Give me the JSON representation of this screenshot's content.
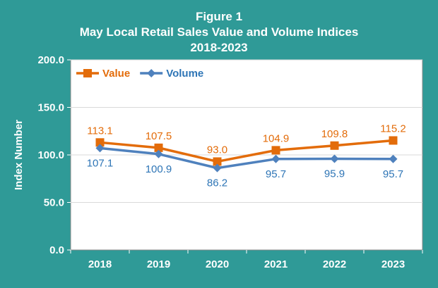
{
  "chart_data": {
    "type": "line",
    "title_lines": [
      "Figure 1",
      "May Local Retail Sales Value and Volume Indices",
      "2018-2023"
    ],
    "xlabel": "",
    "ylabel": "Index Number",
    "categories": [
      "2018",
      "2019",
      "2020",
      "2021",
      "2022",
      "2023"
    ],
    "ylim": [
      0,
      200
    ],
    "y_ticks": [
      0,
      50,
      100,
      150,
      200
    ],
    "y_tick_labels": [
      "0.0",
      "50.0",
      "100.0",
      "150.0",
      "200.0"
    ],
    "grid": true,
    "legend_position": "top-left",
    "series": [
      {
        "name": "Value",
        "color": "#e36c0a",
        "marker": "square",
        "values": [
          113.1,
          107.5,
          93.0,
          104.9,
          109.8,
          115.2
        ],
        "labels": [
          "113.1",
          "107.5",
          "93.0",
          "104.9",
          "109.8",
          "115.2"
        ]
      },
      {
        "name": "Volume",
        "color": "#4f81bd",
        "label_color": "#2e75b6",
        "marker": "diamond",
        "values": [
          107.1,
          100.9,
          86.2,
          95.7,
          95.9,
          95.7
        ],
        "labels": [
          "107.1",
          "100.9",
          "86.2",
          "95.7",
          "95.9",
          "95.7"
        ]
      }
    ]
  }
}
